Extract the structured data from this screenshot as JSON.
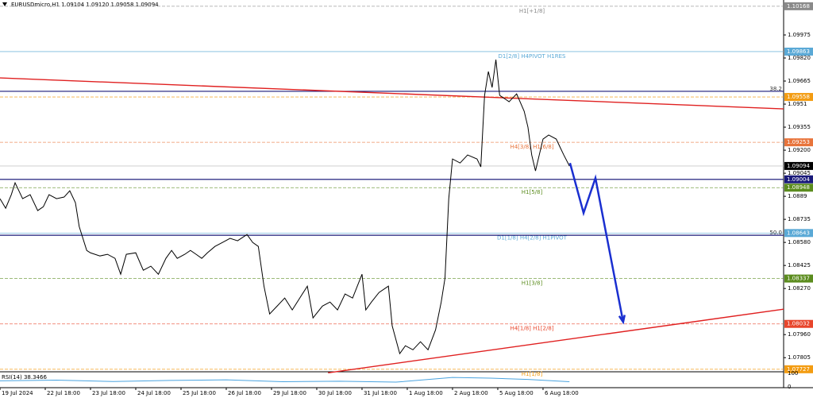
{
  "chart_data": {
    "type": "line",
    "title": "EURUSDmicro,H1  1.09104 1.09120 1.09058 1.09094",
    "xlim": [
      0,
      415.6
    ],
    "xticks": [
      {
        "value": 0,
        "label": "19 Jul 2024"
      },
      {
        "value": 24,
        "label": "22 Jul 18:00"
      },
      {
        "value": 48,
        "label": "23 Jul 18:00"
      },
      {
        "value": 72,
        "label": "24 Jul 18:00"
      },
      {
        "value": 96,
        "label": "25 Jul 18:00"
      },
      {
        "value": 120,
        "label": "26 Jul 18:00"
      },
      {
        "value": 144,
        "label": "29 Jul 18:00"
      },
      {
        "value": 168,
        "label": "30 Jul 18:00"
      },
      {
        "value": 192,
        "label": "31 Jul 18:00"
      },
      {
        "value": 216,
        "label": "1 Aug 18:00"
      },
      {
        "value": 240,
        "label": "2 Aug 18:00"
      },
      {
        "value": 264,
        "label": "5 Aug 18:00"
      },
      {
        "value": 288,
        "label": "6 Aug 18:00"
      }
    ],
    "ylim": [
      1.0771,
      1.1021
    ],
    "yticks": [
      1.09975,
      {
        "value": 1.0982,
        "label": "1.09820"
      },
      1.09665,
      1.0951,
      1.09355,
      {
        "value": 1.092,
        "label": "1.09200"
      },
      1.09045,
      1.0889,
      1.08735,
      {
        "value": 1.0858,
        "label": "1.08580"
      },
      1.08425,
      {
        "value": 1.0827,
        "label": "1.08270"
      },
      {
        "value": 1.0796,
        "label": "1.07960"
      },
      1.07805
    ],
    "series": [
      {
        "name": "EURUSDmicro",
        "color": "#000000",
        "x": [
          0,
          3,
          6,
          8,
          12,
          16,
          20,
          23,
          26,
          30,
          34,
          37,
          40,
          42,
          46,
          48,
          53,
          57,
          61,
          64,
          67,
          72,
          76,
          80,
          84,
          88,
          91,
          94,
          98,
          101,
          104,
          107,
          110,
          114,
          118,
          122,
          126,
          131,
          134,
          137,
          140,
          143,
          147,
          151,
          155,
          159,
          163,
          166,
          171,
          175,
          179,
          183,
          187,
          192,
          194,
          197,
          201,
          206,
          208,
          212,
          215,
          219,
          223,
          227,
          231,
          234,
          236,
          238,
          240,
          244,
          248,
          253,
          255,
          257,
          259,
          261,
          263,
          265,
          270,
          274,
          278,
          280,
          282,
          284,
          286,
          288,
          291,
          295,
          297,
          299,
          302
        ],
        "values": [
          1.08874,
          1.0881,
          1.08901,
          1.08981,
          1.08874,
          1.08901,
          1.08794,
          1.0882,
          1.08901,
          1.08874,
          1.08885,
          1.08927,
          1.08847,
          1.08687,
          1.08526,
          1.0851,
          1.08489,
          1.085,
          1.08473,
          1.08366,
          1.085,
          1.0851,
          1.08393,
          1.0842,
          1.08366,
          1.08473,
          1.08526,
          1.08473,
          1.085,
          1.08526,
          1.085,
          1.08473,
          1.0851,
          1.08553,
          1.0858,
          1.08607,
          1.08591,
          1.08633,
          1.0858,
          1.08553,
          1.08286,
          1.08099,
          1.08152,
          1.08206,
          1.08126,
          1.08206,
          1.08286,
          1.08072,
          1.08152,
          1.08179,
          1.08126,
          1.08233,
          1.08206,
          1.08366,
          1.08126,
          1.08179,
          1.08243,
          1.08286,
          1.08019,
          1.07832,
          1.07885,
          1.07858,
          1.07912,
          1.07858,
          1.07992,
          1.08179,
          1.08339,
          1.08874,
          1.09141,
          1.09114,
          1.09168,
          1.09141,
          1.09088,
          1.09569,
          1.09729,
          1.09622,
          1.09809,
          1.09569,
          1.09526,
          1.09579,
          1.09462,
          1.09355,
          1.09168,
          1.09061,
          1.09168,
          1.09275,
          1.09302,
          1.09275,
          1.09221,
          1.09168,
          1.09094
        ]
      }
    ],
    "levels": [
      {
        "value": 1.10168,
        "label": "H1[+1/8]",
        "color": "#8a8a8a"
      },
      {
        "value": 1.09863,
        "label": "D1[2/8] H4PIVOT H1RES",
        "color": "#5aa9d6"
      },
      {
        "value": 1.09558,
        "color": "#f39c12"
      },
      {
        "value": 1.09253,
        "label": "H4[3/8] H1[6/8]",
        "color": "#e8743b"
      },
      {
        "value": 1.09094,
        "color": "#000000"
      },
      {
        "value": 1.09004,
        "color": "#1a1a7a"
      },
      {
        "value": 1.08948,
        "label": "H1[5/8]",
        "color": "#5b8c1e"
      },
      {
        "value": 1.08643,
        "label": "D1[1/8] H4[2/8] H1PIVOT",
        "color": "#5aa9d6"
      },
      {
        "value": 1.08337,
        "label": "H1[3/8]",
        "color": "#5b8c1e"
      },
      {
        "value": 1.08032,
        "label": "H4[1/8] H1[2/8]",
        "color": "#e8452b"
      },
      {
        "value": 1.07727,
        "label": "H1[1/8]",
        "color": "#f39c12"
      }
    ],
    "fib_levels": [
      {
        "value": 1.09596,
        "label": "38.2",
        "color": "#1a1a7a"
      },
      {
        "value": 1.08628,
        "label": "50.0",
        "color": "#1a1a7a"
      }
    ],
    "trendlines": [
      {
        "color": "#e02020",
        "x": [
          0,
          415.6
        ],
        "values": [
          1.09686,
          1.09478
        ]
      },
      {
        "color": "#e02020",
        "x": [
          174,
          415.6
        ],
        "values": [
          1.07703,
          1.08131
        ]
      }
    ],
    "forecast": {
      "color": "#1a2fd0",
      "x": [
        302.3,
        309.5,
        315.8,
        330.5
      ],
      "values": [
        1.09114,
        1.08778,
        1.09013,
        1.08045
      ]
    },
    "rsi": {
      "title": "RSI(14) 38.3466",
      "color": "#4aa3df",
      "ylim": [
        0,
        100
      ],
      "yticks": [
        100,
        0
      ],
      "x": [
        0,
        30,
        60,
        90,
        120,
        150,
        180,
        210,
        240,
        260,
        280,
        302
      ],
      "values": [
        45,
        50,
        40,
        48,
        52,
        38,
        42,
        35,
        70,
        65,
        55,
        38.3466
      ]
    }
  }
}
